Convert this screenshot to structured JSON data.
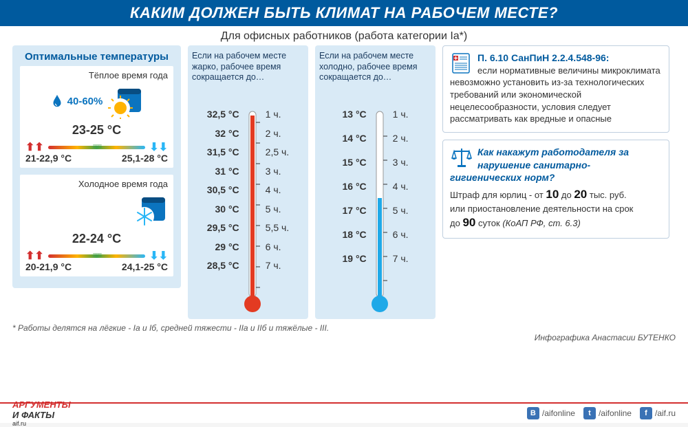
{
  "header": "КАКИМ ДОЛЖЕН БЫТЬ КЛИМАТ НА РАБОЧЕМ МЕСТЕ?",
  "subhead": "Для офисных работников (работа категории Iа*)",
  "colors": {
    "header_bg": "#005a9e",
    "panel_bg": "#d9eaf6",
    "accent_blue": "#005a9e",
    "hot_color": "#e33b22",
    "cold_color": "#29b6f6",
    "gradient": [
      "#d32f2f",
      "#ffb300",
      "#43a047",
      "#ffb300",
      "#29b6f6"
    ]
  },
  "optimal": {
    "title": "Оптимальные температуры",
    "humidity": "40-60%",
    "warm": {
      "label": "Тёплое время года",
      "main": "23-25 °С",
      "left": "21-22,9 °С",
      "right": "25,1-28 °С"
    },
    "cold": {
      "label": "Холодное время года",
      "main": "22-24 °С",
      "left": "20-21,9 °С",
      "right": "24,1-25 °С"
    }
  },
  "hot_table": {
    "head": "Если на рабочем месте жарко, рабочее время сокращается до…",
    "therm_color": "#e33b22",
    "rows": [
      {
        "t": "32,5 °С",
        "h": "1 ч."
      },
      {
        "t": "32 °С",
        "h": "2 ч."
      },
      {
        "t": "31,5 °С",
        "h": "2,5 ч."
      },
      {
        "t": "31 °С",
        "h": "3 ч."
      },
      {
        "t": "30,5 °С",
        "h": "4 ч."
      },
      {
        "t": "30 °С",
        "h": "5 ч."
      },
      {
        "t": "29,5 °С",
        "h": "5,5 ч."
      },
      {
        "t": "29 °С",
        "h": "6 ч."
      },
      {
        "t": "28,5 °С",
        "h": "7 ч."
      }
    ]
  },
  "cold_table": {
    "head": "Если на рабочем месте холодно, рабочее время сокращается до…",
    "therm_color": "#1fa9e8",
    "rows": [
      {
        "t": "13 °С",
        "h": "1 ч."
      },
      {
        "t": "14 °С",
        "h": "2 ч."
      },
      {
        "t": "15 °С",
        "h": "3 ч."
      },
      {
        "t": "16 °С",
        "h": "4 ч."
      },
      {
        "t": "17 °С",
        "h": "5 ч."
      },
      {
        "t": "18 °С",
        "h": "6 ч."
      },
      {
        "t": "19 °С",
        "h": "7 ч."
      }
    ]
  },
  "reg1": {
    "title": "П. 6.10 СанПиН 2.2.4.548-96:",
    "body": "если нормативные величины микроклимата невозможно установить из-за технологических требований или экономической нецелесообразности, условия следует рассматривать как вредные и опасные"
  },
  "reg2": {
    "title": "Как накажут работодателя за нарушение санитарно-гигиенических норм?",
    "body_pre": "Штраф для юрлиц - от ",
    "fine_low": "10",
    "body_mid": " до ",
    "fine_high": "20",
    "body_unit": " тыс. руб.",
    "body_or": "или приостановление деятельности на срок",
    "body_days_pre": "до ",
    "days": "90",
    "body_days_post": " суток ",
    "law": "(КоАП РФ, ст. 6.3)"
  },
  "footnote": "* Работы делятся на лёгкие - Iа и Iб, средней тяжести - IIа и IIб и тяжёлые - III.",
  "credit": "Инфографика Анастасии БУТЕНКО",
  "footer": {
    "logo_top": "АРГУМЕНТЫ",
    "logo_bot": "И ФАКТЫ",
    "site": "aif.ru",
    "socials": [
      {
        "icon": "vk",
        "label": "/aifonline"
      },
      {
        "icon": "tw",
        "label": "/aifonline"
      },
      {
        "icon": "fb",
        "label": "/aif.ru"
      }
    ]
  }
}
